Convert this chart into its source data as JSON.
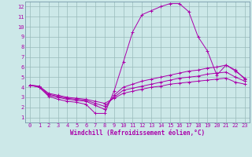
{
  "xlabel": "Windchill (Refroidissement éolien,°C)",
  "background_color": "#cce8e8",
  "line_color": "#aa00aa",
  "grid_color": "#99bbbb",
  "spine_color": "#7799aa",
  "xlim": [
    -0.5,
    23.5
  ],
  "ylim": [
    0.5,
    12.5
  ],
  "xticks": [
    0,
    1,
    2,
    3,
    4,
    5,
    6,
    7,
    8,
    9,
    10,
    11,
    12,
    13,
    14,
    15,
    16,
    17,
    18,
    19,
    20,
    21,
    22,
    23
  ],
  "yticks": [
    1,
    2,
    3,
    4,
    5,
    6,
    7,
    8,
    9,
    10,
    11,
    12
  ],
  "line1_x": [
    0,
    1,
    2,
    3,
    4,
    5,
    6,
    7,
    8,
    9,
    10,
    11,
    12,
    13,
    14,
    15,
    16,
    17,
    18,
    19,
    20,
    21,
    22,
    23
  ],
  "line1_y": [
    4.2,
    4.0,
    3.1,
    2.8,
    2.6,
    2.5,
    2.3,
    1.4,
    1.4,
    3.6,
    6.5,
    9.5,
    11.2,
    11.6,
    12.0,
    12.3,
    12.3,
    11.5,
    9.0,
    7.6,
    5.2,
    6.2,
    5.7,
    4.8
  ],
  "line2_x": [
    0,
    1,
    2,
    3,
    4,
    5,
    6,
    7,
    8,
    9,
    10,
    11,
    12,
    13,
    14,
    15,
    16,
    17,
    18,
    19,
    20,
    21,
    22,
    23
  ],
  "line2_y": [
    4.2,
    4.0,
    3.2,
    3.0,
    2.8,
    2.7,
    2.6,
    2.2,
    1.8,
    3.2,
    4.0,
    4.3,
    4.6,
    4.8,
    5.0,
    5.2,
    5.4,
    5.6,
    5.7,
    5.9,
    6.0,
    6.2,
    5.6,
    4.9
  ],
  "line3_x": [
    0,
    1,
    2,
    3,
    4,
    5,
    6,
    7,
    8,
    9,
    10,
    11,
    12,
    13,
    14,
    15,
    16,
    17,
    18,
    19,
    20,
    21,
    22,
    23
  ],
  "line3_y": [
    4.2,
    4.1,
    3.3,
    3.1,
    2.9,
    2.8,
    2.7,
    2.4,
    2.1,
    3.0,
    3.7,
    3.9,
    4.1,
    4.3,
    4.5,
    4.7,
    4.9,
    5.0,
    5.1,
    5.3,
    5.4,
    5.5,
    5.0,
    4.6
  ],
  "line4_x": [
    0,
    1,
    2,
    3,
    4,
    5,
    6,
    7,
    8,
    9,
    10,
    11,
    12,
    13,
    14,
    15,
    16,
    17,
    18,
    19,
    20,
    21,
    22,
    23
  ],
  "line4_y": [
    4.2,
    4.1,
    3.4,
    3.2,
    3.0,
    2.9,
    2.8,
    2.6,
    2.4,
    2.9,
    3.4,
    3.6,
    3.8,
    4.0,
    4.1,
    4.3,
    4.4,
    4.5,
    4.6,
    4.7,
    4.8,
    4.9,
    4.5,
    4.3
  ],
  "xlabel_fontsize": 5.5,
  "tick_fontsize": 5.0
}
